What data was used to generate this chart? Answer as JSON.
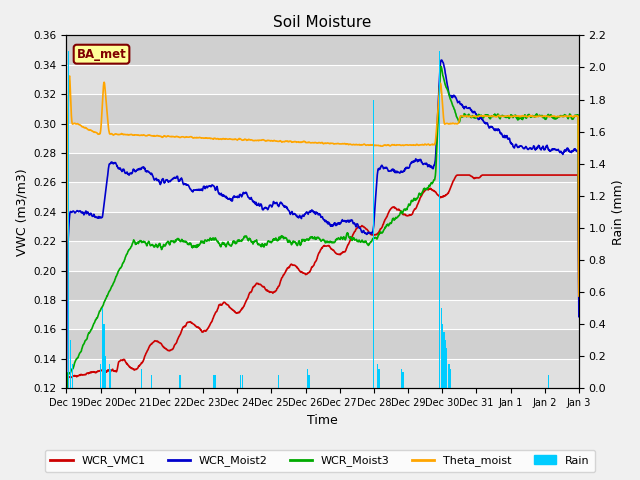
{
  "title": "Soil Moisture",
  "xlabel": "Time",
  "ylabel_left": "VWC (m3/m3)",
  "ylabel_right": "Rain (mm)",
  "ylim_left": [
    0.12,
    0.36
  ],
  "ylim_right": [
    0.0,
    2.2
  ],
  "background_color": "#f0f0f0",
  "axes_facecolor": "#e8e8e8",
  "legend_label": "BA_met",
  "series_colors": {
    "WCR_VMC1": "#cc0000",
    "WCR_Moist2": "#0000cc",
    "WCR_Moist3": "#00aa00",
    "Theta_moist": "#ffa500",
    "Rain": "#00ccff"
  },
  "tick_labels": [
    "Dec 19",
    "Dec 20",
    "Dec 21",
    "Dec 22",
    "Dec 23",
    "Dec 24",
    "Dec 25",
    "Dec 26",
    "Dec 27",
    "Dec 28",
    "Dec 29",
    "Dec 30",
    "Dec 31",
    "Jan 1",
    "Jan 2",
    "Jan 3"
  ]
}
